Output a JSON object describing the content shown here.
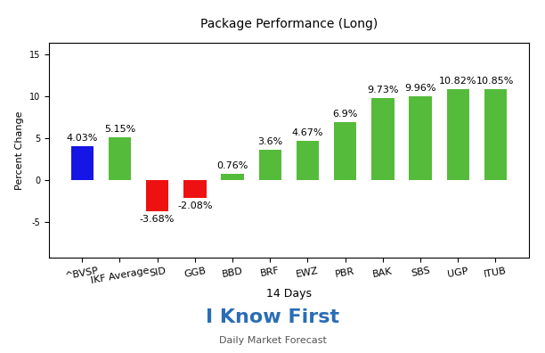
{
  "chart_data": {
    "type": "bar",
    "title": "Package Performance (Long)",
    "x_label": "14 Days",
    "y_label": "Percent Change",
    "categories": [
      "^BVSP",
      "IKF Average",
      "SID",
      "GGB",
      "BBD",
      "BRF",
      "EWZ",
      "PBR",
      "BAK",
      "SBS",
      "UGP",
      "ITUB"
    ],
    "values": [
      4.03,
      5.15,
      -3.68,
      -2.08,
      0.76,
      3.6,
      4.67,
      6.9,
      9.73,
      9.96,
      10.82,
      10.85
    ],
    "value_labels": [
      "4.03%",
      "5.15%",
      "-3.68%",
      "-2.08%",
      "0.76%",
      "3.6%",
      "4.67%",
      "6.9%",
      "9.73%",
      "9.96%",
      "10.82%",
      "10.85%"
    ],
    "colors": [
      "#1515e6",
      "#55bb3a",
      "#ee1111",
      "#ee1111",
      "#55bb3a",
      "#55bb3a",
      "#55bb3a",
      "#55bb3a",
      "#55bb3a",
      "#55bb3a",
      "#55bb3a",
      "#55bb3a"
    ],
    "ylim": [
      -9.2,
      16.4
    ],
    "yticks": [
      -5,
      0,
      5,
      10,
      15
    ],
    "grid": false,
    "data_labels": true,
    "annotations": [
      "I Know First",
      "Daily Market Forecast"
    ]
  }
}
